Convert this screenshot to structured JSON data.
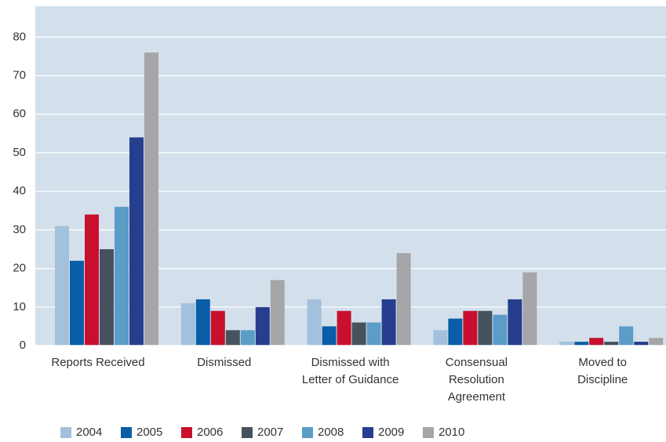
{
  "chart_data": {
    "type": "bar",
    "categories": [
      "Reports Received",
      "Dismissed",
      "Dismissed with\nLetter of Guidance",
      "Consensual\nResolution\nAgreement",
      "Moved to\nDiscipline"
    ],
    "series": [
      {
        "name": "2004",
        "color": "#a3c0dc",
        "values": [
          31,
          11,
          12,
          4,
          1
        ]
      },
      {
        "name": "2005",
        "color": "#0a5ea8",
        "values": [
          22,
          12,
          5,
          7,
          1
        ]
      },
      {
        "name": "2006",
        "color": "#c8102e",
        "values": [
          34,
          9,
          9,
          9,
          2
        ]
      },
      {
        "name": "2007",
        "color": "#46535e",
        "values": [
          25,
          4,
          6,
          9,
          1
        ]
      },
      {
        "name": "2008",
        "color": "#5b9dc6",
        "values": [
          36,
          4,
          6,
          8,
          5
        ]
      },
      {
        "name": "2009",
        "color": "#263e8e",
        "values": [
          54,
          10,
          12,
          12,
          1
        ]
      },
      {
        "name": "2010",
        "color": "#a6a6a8",
        "values": [
          76,
          17,
          24,
          19,
          2
        ]
      }
    ],
    "ylim": [
      0,
      88
    ],
    "yticks": [
      0,
      10,
      20,
      30,
      40,
      50,
      60,
      70,
      80
    ],
    "grid": true,
    "background": "#d3e0ec",
    "legend": "bottom"
  }
}
